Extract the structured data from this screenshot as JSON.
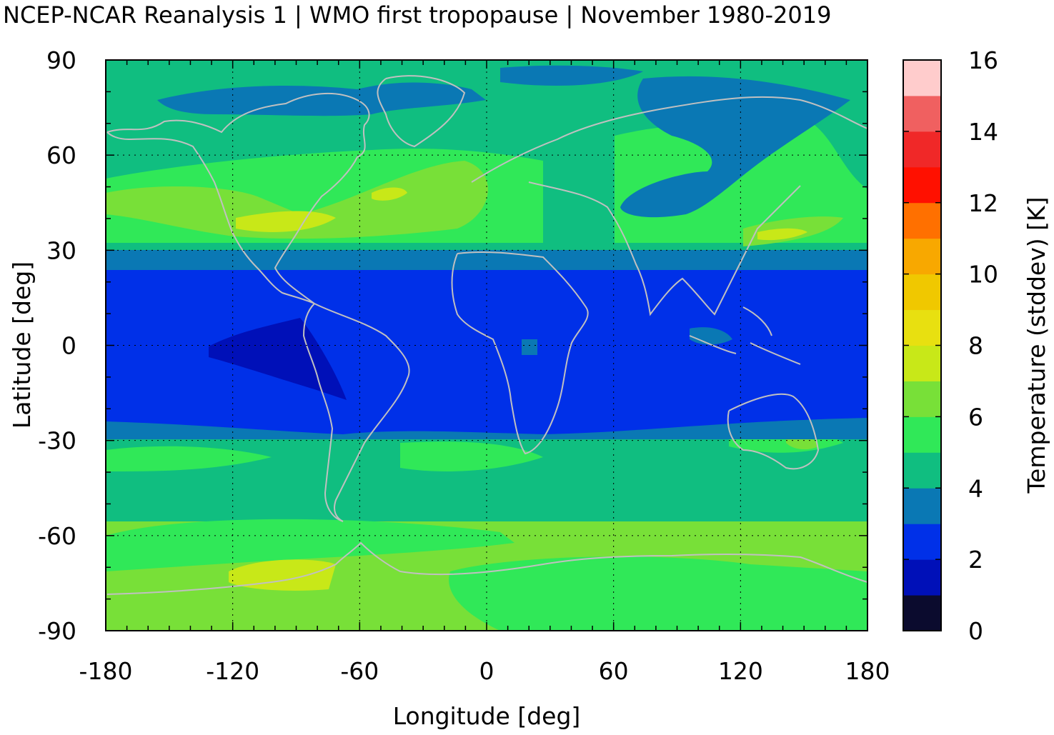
{
  "title": "NCEP-NCAR Reanalysis 1 | WMO first tropopause | November 1980-2019",
  "map": {
    "xlabel": "Longitude [deg]",
    "ylabel": "Latitude [deg]",
    "xlim": [
      -180,
      180
    ],
    "ylim": [
      -90,
      90
    ],
    "xticks": [
      "-180",
      "-120",
      "-60",
      "0",
      "60",
      "120",
      "180"
    ],
    "yticks": [
      "90",
      "60",
      "30",
      "0",
      "-30",
      "-60",
      "-90"
    ],
    "grid": true,
    "coastline_color": "#c0c0c0"
  },
  "colorbar": {
    "label": "Temperature (stddev) [K]",
    "ticks": [
      "16",
      "14",
      "12",
      "10",
      "8",
      "6",
      "4",
      "2",
      "0"
    ],
    "levels": [
      0,
      1,
      2,
      3,
      4,
      5,
      6,
      7,
      8,
      9,
      10,
      11,
      12,
      13,
      14,
      15,
      16
    ],
    "colors": [
      "#0b0b2e",
      "#0010b8",
      "#0030e8",
      "#0a78b4",
      "#10be80",
      "#30e858",
      "#78e038",
      "#c8e818",
      "#e8e010",
      "#f0c800",
      "#f8a800",
      "#ff7000",
      "#ff1000",
      "#f02828",
      "#f06060",
      "#ffcccc"
    ]
  }
}
